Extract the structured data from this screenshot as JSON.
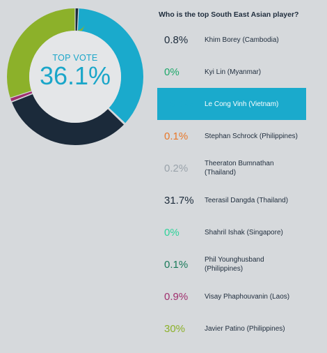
{
  "header": {
    "question": "Who is the top South East Asian player?"
  },
  "center": {
    "caption": "TOP VOTE",
    "value": "36.1%"
  },
  "colors": {
    "background": "#d6d9dc",
    "highlight": "#1aaacc",
    "text": "#1f2d3d"
  },
  "chart_data": {
    "type": "pie",
    "title": "Who is the top South East Asian player?",
    "labels": [
      "Khim Borey (Cambodia)",
      "Kyi Lin (Myanmar)",
      "Le Cong Vinh (Vietnam)",
      "Stephan Schrock (Philippines)",
      "Theeraton Bumnathan (Thailand)",
      "Teerasil Dangda (Thailand)",
      "Shahril Ishak (Singapore)",
      "Phil Younghusband (Philippines)",
      "Visay Phaphouvanin (Laos)",
      "Javier Patino (Philippines)"
    ],
    "values": [
      0.8,
      0,
      36.1,
      0.1,
      0.2,
      31.7,
      0,
      0.1,
      0.9,
      30
    ],
    "value_labels": [
      "0.8%",
      "0%",
      "36.1%",
      "0.1%",
      "0.2%",
      "31.7%",
      "0%",
      "0.1%",
      "0.9%",
      "30%"
    ],
    "colors": [
      "#1b2a3a",
      "#1ea86a",
      "#1aaacc",
      "#e8782a",
      "#9aa3ab",
      "#1b2a3a",
      "#2ed39a",
      "#1a7a5a",
      "#a0306e",
      "#8cb12a"
    ],
    "highlighted_index": 2,
    "legend": "right"
  }
}
